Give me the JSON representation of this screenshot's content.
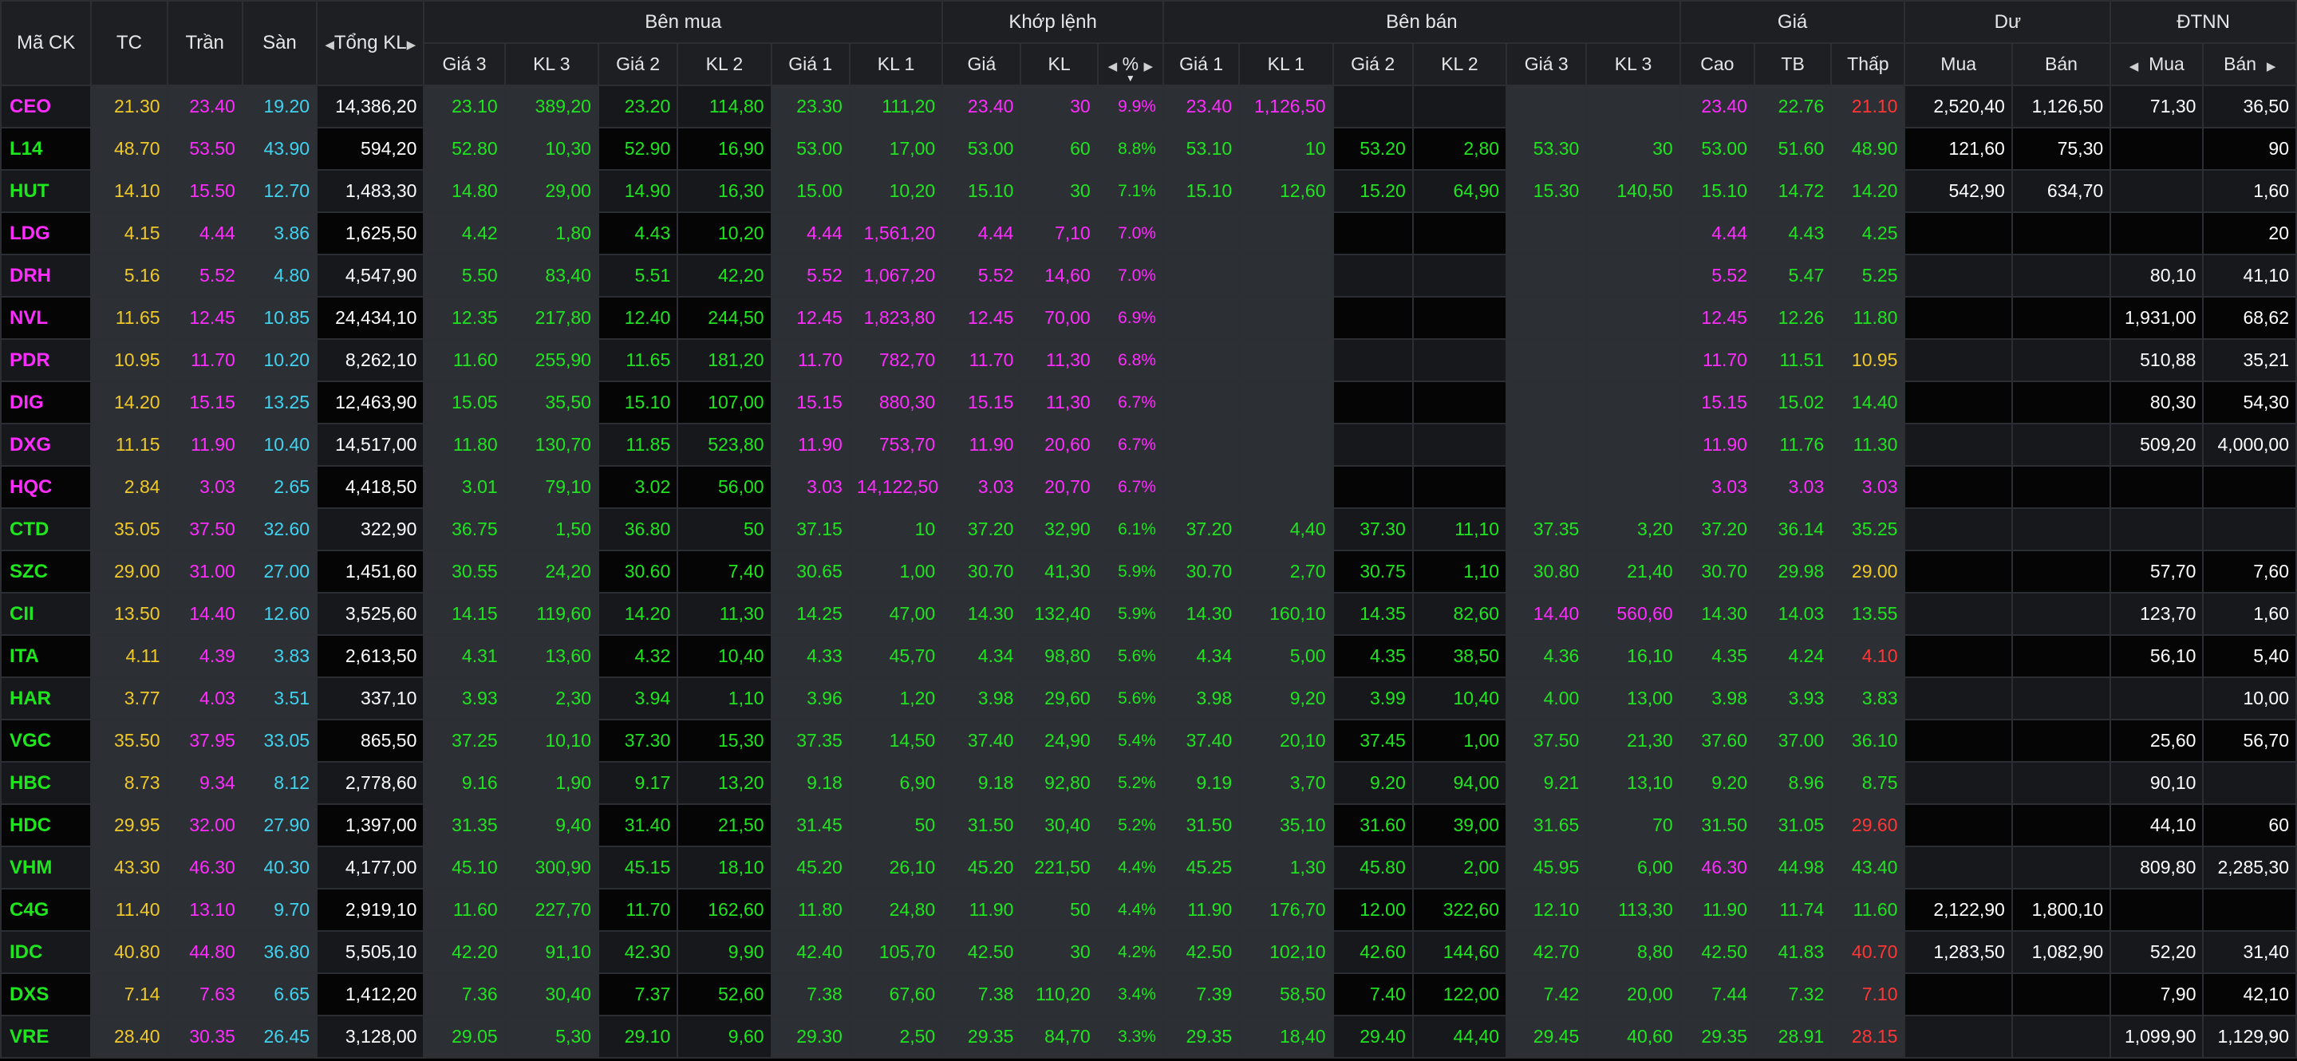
{
  "header": {
    "symbol": "Mã CK",
    "ref": "TC",
    "ceiling": "Trần",
    "floor": "Sàn",
    "total_volume": "Tổng KL",
    "buy_group": "Bên mua",
    "match_group": "Khớp lệnh",
    "sell_group": "Bên bán",
    "price_group": "Giá",
    "remain_group": "Dư",
    "foreign_group": "ĐTNN",
    "price3": "Giá 3",
    "vol3": "KL 3",
    "price2": "Giá 2",
    "vol2": "KL 2",
    "price1": "Giá 1",
    "vol1": "KL 1",
    "match_price": "Giá",
    "match_vol": "KL",
    "match_pct": "%",
    "high": "Cao",
    "avg": "TB",
    "low": "Thấp",
    "remain_buy": "Mua",
    "remain_sell": "Bán",
    "foreign_buy": "Mua",
    "foreign_sell": "Bán"
  },
  "colors": {
    "ceiling": "#ff2cff",
    "reference": "#f0c928",
    "floor": "#3fd3f0",
    "up": "#1fe51f",
    "down": "#ff3636",
    "neutral": "#ffffff",
    "header_bg": "#1d1f23",
    "highlight_bg": "#2c2f34"
  },
  "rows": [
    {
      "sym": "CEO",
      "tc": "21.30",
      "tran": "23.40",
      "san": "19.20",
      "tkl": "14,386,20",
      "bg3": "23.10",
      "bk3": "389,20",
      "bg2": "23.20",
      "bk2": "114,80",
      "bg1": "23.30",
      "bk1": "111,20",
      "mg": "23.40",
      "mk": "30",
      "mp": "9.9%",
      "sg1": "23.40",
      "sk1": "1,126,50",
      "sg2": "",
      "sk2": "",
      "sg3": "",
      "sk3": "",
      "cao": "23.40",
      "tb": "22.76",
      "thap": "21.10",
      "dm": "2,520,40",
      "db": "1,126,50",
      "fm": "71,30",
      "fb": "36,50",
      "c": {
        "sym": "ceil",
        "bg3": "up",
        "bg2": "up",
        "bg1": "up",
        "m": "ceil",
        "sg1": "ceil",
        "cao": "ceil",
        "tb": "up",
        "thap": "down"
      }
    },
    {
      "sym": "L14",
      "tc": "48.70",
      "tran": "53.50",
      "san": "43.90",
      "tkl": "594,20",
      "bg3": "52.80",
      "bk3": "10,30",
      "bg2": "52.90",
      "bk2": "16,90",
      "bg1": "53.00",
      "bk1": "17,00",
      "mg": "53.00",
      "mk": "60",
      "mp": "8.8%",
      "sg1": "53.10",
      "sk1": "10",
      "sg2": "53.20",
      "sk2": "2,80",
      "sg3": "53.30",
      "sk3": "30",
      "cao": "53.00",
      "tb": "51.60",
      "thap": "48.90",
      "dm": "121,60",
      "db": "75,30",
      "fm": "",
      "fb": "90",
      "c": {
        "sym": "up",
        "bg3": "up",
        "bg2": "up",
        "bg1": "up",
        "m": "up",
        "sg1": "up",
        "sg2": "up",
        "sg3": "up",
        "cao": "up",
        "tb": "up",
        "thap": "up"
      }
    },
    {
      "sym": "HUT",
      "tc": "14.10",
      "tran": "15.50",
      "san": "12.70",
      "tkl": "1,483,30",
      "bg3": "14.80",
      "bk3": "29,00",
      "bg2": "14.90",
      "bk2": "16,30",
      "bg1": "15.00",
      "bk1": "10,20",
      "mg": "15.10",
      "mk": "30",
      "mp": "7.1%",
      "sg1": "15.10",
      "sk1": "12,60",
      "sg2": "15.20",
      "sk2": "64,90",
      "sg3": "15.30",
      "sk3": "140,50",
      "cao": "15.10",
      "tb": "14.72",
      "thap": "14.20",
      "dm": "542,90",
      "db": "634,70",
      "fm": "",
      "fb": "1,60",
      "c": {
        "sym": "up",
        "bg3": "up",
        "bg2": "up",
        "bg1": "up",
        "m": "up",
        "sg1": "up",
        "sg2": "up",
        "sg3": "up",
        "cao": "up",
        "tb": "up",
        "thap": "up"
      }
    },
    {
      "sym": "LDG",
      "tc": "4.15",
      "tran": "4.44",
      "san": "3.86",
      "tkl": "1,625,50",
      "bg3": "4.42",
      "bk3": "1,80",
      "bg2": "4.43",
      "bk2": "10,20",
      "bg1": "4.44",
      "bk1": "1,561,20",
      "mg": "4.44",
      "mk": "7,10",
      "mp": "7.0%",
      "sg1": "",
      "sk1": "",
      "sg2": "",
      "sk2": "",
      "sg3": "",
      "sk3": "",
      "cao": "4.44",
      "tb": "4.43",
      "thap": "4.25",
      "dm": "",
      "db": "",
      "fm": "",
      "fb": "20",
      "c": {
        "sym": "ceil",
        "bg3": "up",
        "bg2": "up",
        "bg1": "ceil",
        "m": "ceil",
        "cao": "ceil",
        "tb": "up",
        "thap": "up"
      }
    },
    {
      "sym": "DRH",
      "tc": "5.16",
      "tran": "5.52",
      "san": "4.80",
      "tkl": "4,547,90",
      "bg3": "5.50",
      "bk3": "83,40",
      "bg2": "5.51",
      "bk2": "42,20",
      "bg1": "5.52",
      "bk1": "1,067,20",
      "mg": "5.52",
      "mk": "14,60",
      "mp": "7.0%",
      "sg1": "",
      "sk1": "",
      "sg2": "",
      "sk2": "",
      "sg3": "",
      "sk3": "",
      "cao": "5.52",
      "tb": "5.47",
      "thap": "5.25",
      "dm": "",
      "db": "",
      "fm": "80,10",
      "fb": "41,10",
      "c": {
        "sym": "ceil",
        "bg3": "up",
        "bg2": "up",
        "bg1": "ceil",
        "m": "ceil",
        "cao": "ceil",
        "tb": "up",
        "thap": "up"
      }
    },
    {
      "sym": "NVL",
      "tc": "11.65",
      "tran": "12.45",
      "san": "10.85",
      "tkl": "24,434,10",
      "bg3": "12.35",
      "bk3": "217,80",
      "bg2": "12.40",
      "bk2": "244,50",
      "bg1": "12.45",
      "bk1": "1,823,80",
      "mg": "12.45",
      "mk": "70,00",
      "mp": "6.9%",
      "sg1": "",
      "sk1": "",
      "sg2": "",
      "sk2": "",
      "sg3": "",
      "sk3": "",
      "cao": "12.45",
      "tb": "12.26",
      "thap": "11.80",
      "dm": "",
      "db": "",
      "fm": "1,931,00",
      "fb": "68,62",
      "c": {
        "sym": "ceil",
        "bg3": "up",
        "bg2": "up",
        "bg1": "ceil",
        "m": "ceil",
        "cao": "ceil",
        "tb": "up",
        "thap": "up"
      }
    },
    {
      "sym": "PDR",
      "tc": "10.95",
      "tran": "11.70",
      "san": "10.20",
      "tkl": "8,262,10",
      "bg3": "11.60",
      "bk3": "255,90",
      "bg2": "11.65",
      "bk2": "181,20",
      "bg1": "11.70",
      "bk1": "782,70",
      "mg": "11.70",
      "mk": "11,30",
      "mp": "6.8%",
      "sg1": "",
      "sk1": "",
      "sg2": "",
      "sk2": "",
      "sg3": "",
      "sk3": "",
      "cao": "11.70",
      "tb": "11.51",
      "thap": "10.95",
      "dm": "",
      "db": "",
      "fm": "510,88",
      "fb": "35,21",
      "c": {
        "sym": "ceil",
        "bg3": "up",
        "bg2": "up",
        "bg1": "ceil",
        "m": "ceil",
        "cao": "ceil",
        "tb": "up",
        "thap": "ref"
      }
    },
    {
      "sym": "DIG",
      "tc": "14.20",
      "tran": "15.15",
      "san": "13.25",
      "tkl": "12,463,90",
      "bg3": "15.05",
      "bk3": "35,50",
      "bg2": "15.10",
      "bk2": "107,00",
      "bg1": "15.15",
      "bk1": "880,30",
      "mg": "15.15",
      "mk": "11,30",
      "mp": "6.7%",
      "sg1": "",
      "sk1": "",
      "sg2": "",
      "sk2": "",
      "sg3": "",
      "sk3": "",
      "cao": "15.15",
      "tb": "15.02",
      "thap": "14.40",
      "dm": "",
      "db": "",
      "fm": "80,30",
      "fb": "54,30",
      "c": {
        "sym": "ceil",
        "bg3": "up",
        "bg2": "up",
        "bg1": "ceil",
        "m": "ceil",
        "cao": "ceil",
        "tb": "up",
        "thap": "up"
      }
    },
    {
      "sym": "DXG",
      "tc": "11.15",
      "tran": "11.90",
      "san": "10.40",
      "tkl": "14,517,00",
      "bg3": "11.80",
      "bk3": "130,70",
      "bg2": "11.85",
      "bk2": "523,80",
      "bg1": "11.90",
      "bk1": "753,70",
      "mg": "11.90",
      "mk": "20,60",
      "mp": "6.7%",
      "sg1": "",
      "sk1": "",
      "sg2": "",
      "sk2": "",
      "sg3": "",
      "sk3": "",
      "cao": "11.90",
      "tb": "11.76",
      "thap": "11.30",
      "dm": "",
      "db": "",
      "fm": "509,20",
      "fb": "4,000,00",
      "c": {
        "sym": "ceil",
        "bg3": "up",
        "bg2": "up",
        "bg1": "ceil",
        "m": "ceil",
        "cao": "ceil",
        "tb": "up",
        "thap": "up"
      }
    },
    {
      "sym": "HQC",
      "tc": "2.84",
      "tran": "3.03",
      "san": "2.65",
      "tkl": "4,418,50",
      "bg3": "3.01",
      "bk3": "79,10",
      "bg2": "3.02",
      "bk2": "56,00",
      "bg1": "3.03",
      "bk1": "14,122,50",
      "mg": "3.03",
      "mk": "20,70",
      "mp": "6.7%",
      "sg1": "",
      "sk1": "",
      "sg2": "",
      "sk2": "",
      "sg3": "",
      "sk3": "",
      "cao": "3.03",
      "tb": "3.03",
      "thap": "3.03",
      "dm": "",
      "db": "",
      "fm": "",
      "fb": "",
      "c": {
        "sym": "ceil",
        "bg3": "up",
        "bg2": "up",
        "bg1": "ceil",
        "m": "ceil",
        "cao": "ceil",
        "tb": "ceil",
        "thap": "ceil"
      }
    },
    {
      "sym": "CTD",
      "tc": "35.05",
      "tran": "37.50",
      "san": "32.60",
      "tkl": "322,90",
      "bg3": "36.75",
      "bk3": "1,50",
      "bg2": "36.80",
      "bk2": "50",
      "bg1": "37.15",
      "bk1": "10",
      "mg": "37.20",
      "mk": "32,90",
      "mp": "6.1%",
      "sg1": "37.20",
      "sk1": "4,40",
      "sg2": "37.30",
      "sk2": "11,10",
      "sg3": "37.35",
      "sk3": "3,20",
      "cao": "37.20",
      "tb": "36.14",
      "thap": "35.25",
      "dm": "",
      "db": "",
      "fm": "",
      "fb": "",
      "c": {
        "sym": "up",
        "bg3": "up",
        "bg2": "up",
        "bg1": "up",
        "m": "up",
        "sg1": "up",
        "sg2": "up",
        "sg3": "up",
        "cao": "up",
        "tb": "up",
        "thap": "up"
      }
    },
    {
      "sym": "SZC",
      "tc": "29.00",
      "tran": "31.00",
      "san": "27.00",
      "tkl": "1,451,60",
      "bg3": "30.55",
      "bk3": "24,20",
      "bg2": "30.60",
      "bk2": "7,40",
      "bg1": "30.65",
      "bk1": "1,00",
      "mg": "30.70",
      "mk": "41,30",
      "mp": "5.9%",
      "sg1": "30.70",
      "sk1": "2,70",
      "sg2": "30.75",
      "sk2": "1,10",
      "sg3": "30.80",
      "sk3": "21,40",
      "cao": "30.70",
      "tb": "29.98",
      "thap": "29.00",
      "dm": "",
      "db": "",
      "fm": "57,70",
      "fb": "7,60",
      "c": {
        "sym": "up",
        "bg3": "up",
        "bg2": "up",
        "bg1": "up",
        "m": "up",
        "sg1": "up",
        "sg2": "up",
        "sg3": "up",
        "cao": "up",
        "tb": "up",
        "thap": "ref"
      }
    },
    {
      "sym": "CII",
      "tc": "13.50",
      "tran": "14.40",
      "san": "12.60",
      "tkl": "3,525,60",
      "bg3": "14.15",
      "bk3": "119,60",
      "bg2": "14.20",
      "bk2": "11,30",
      "bg1": "14.25",
      "bk1": "47,00",
      "mg": "14.30",
      "mk": "132,40",
      "mp": "5.9%",
      "sg1": "14.30",
      "sk1": "160,10",
      "sg2": "14.35",
      "sk2": "82,60",
      "sg3": "14.40",
      "sk3": "560,60",
      "cao": "14.30",
      "tb": "14.03",
      "thap": "13.55",
      "dm": "",
      "db": "",
      "fm": "123,70",
      "fb": "1,60",
      "c": {
        "sym": "up",
        "bg3": "up",
        "bg2": "up",
        "bg1": "up",
        "m": "up",
        "sg1": "up",
        "sg2": "up",
        "sg3": "ceil",
        "cao": "up",
        "tb": "up",
        "thap": "up"
      }
    },
    {
      "sym": "ITA",
      "tc": "4.11",
      "tran": "4.39",
      "san": "3.83",
      "tkl": "2,613,50",
      "bg3": "4.31",
      "bk3": "13,60",
      "bg2": "4.32",
      "bk2": "10,40",
      "bg1": "4.33",
      "bk1": "45,70",
      "mg": "4.34",
      "mk": "98,80",
      "mp": "5.6%",
      "sg1": "4.34",
      "sk1": "5,00",
      "sg2": "4.35",
      "sk2": "38,50",
      "sg3": "4.36",
      "sk3": "16,10",
      "cao": "4.35",
      "tb": "4.24",
      "thap": "4.10",
      "dm": "",
      "db": "",
      "fm": "56,10",
      "fb": "5,40",
      "c": {
        "sym": "up",
        "bg3": "up",
        "bg2": "up",
        "bg1": "up",
        "m": "up",
        "sg1": "up",
        "sg2": "up",
        "sg3": "up",
        "cao": "up",
        "tb": "up",
        "thap": "down"
      }
    },
    {
      "sym": "HAR",
      "tc": "3.77",
      "tran": "4.03",
      "san": "3.51",
      "tkl": "337,10",
      "bg3": "3.93",
      "bk3": "2,30",
      "bg2": "3.94",
      "bk2": "1,10",
      "bg1": "3.96",
      "bk1": "1,20",
      "mg": "3.98",
      "mk": "29,60",
      "mp": "5.6%",
      "sg1": "3.98",
      "sk1": "9,20",
      "sg2": "3.99",
      "sk2": "10,40",
      "sg3": "4.00",
      "sk3": "13,00",
      "cao": "3.98",
      "tb": "3.93",
      "thap": "3.83",
      "dm": "",
      "db": "",
      "fm": "",
      "fb": "10,00",
      "c": {
        "sym": "up",
        "bg3": "up",
        "bg2": "up",
        "bg1": "up",
        "m": "up",
        "sg1": "up",
        "sg2": "up",
        "sg3": "up",
        "cao": "up",
        "tb": "up",
        "thap": "up"
      }
    },
    {
      "sym": "VGC",
      "tc": "35.50",
      "tran": "37.95",
      "san": "33.05",
      "tkl": "865,50",
      "bg3": "37.25",
      "bk3": "10,10",
      "bg2": "37.30",
      "bk2": "15,30",
      "bg1": "37.35",
      "bk1": "14,50",
      "mg": "37.40",
      "mk": "24,90",
      "mp": "5.4%",
      "sg1": "37.40",
      "sk1": "20,10",
      "sg2": "37.45",
      "sk2": "1,00",
      "sg3": "37.50",
      "sk3": "21,30",
      "cao": "37.60",
      "tb": "37.00",
      "thap": "36.10",
      "dm": "",
      "db": "",
      "fm": "25,60",
      "fb": "56,70",
      "c": {
        "sym": "up",
        "bg3": "up",
        "bg2": "up",
        "bg1": "up",
        "m": "up",
        "sg1": "up",
        "sg2": "up",
        "sg3": "up",
        "cao": "up",
        "tb": "up",
        "thap": "up"
      }
    },
    {
      "sym": "HBC",
      "tc": "8.73",
      "tran": "9.34",
      "san": "8.12",
      "tkl": "2,778,60",
      "bg3": "9.16",
      "bk3": "1,90",
      "bg2": "9.17",
      "bk2": "13,20",
      "bg1": "9.18",
      "bk1": "6,90",
      "mg": "9.18",
      "mk": "92,80",
      "mp": "5.2%",
      "sg1": "9.19",
      "sk1": "3,70",
      "sg2": "9.20",
      "sk2": "94,00",
      "sg3": "9.21",
      "sk3": "13,10",
      "cao": "9.20",
      "tb": "8.96",
      "thap": "8.75",
      "dm": "",
      "db": "",
      "fm": "90,10",
      "fb": "",
      "c": {
        "sym": "up",
        "bg3": "up",
        "bg2": "up",
        "bg1": "up",
        "m": "up",
        "sg1": "up",
        "sg2": "up",
        "sg3": "up",
        "cao": "up",
        "tb": "up",
        "thap": "up"
      }
    },
    {
      "sym": "HDC",
      "tc": "29.95",
      "tran": "32.00",
      "san": "27.90",
      "tkl": "1,397,00",
      "bg3": "31.35",
      "bk3": "9,40",
      "bg2": "31.40",
      "bk2": "21,50",
      "bg1": "31.45",
      "bk1": "50",
      "mg": "31.50",
      "mk": "30,40",
      "mp": "5.2%",
      "sg1": "31.50",
      "sk1": "35,10",
      "sg2": "31.60",
      "sk2": "39,00",
      "sg3": "31.65",
      "sk3": "70",
      "cao": "31.50",
      "tb": "31.05",
      "thap": "29.60",
      "dm": "",
      "db": "",
      "fm": "44,10",
      "fb": "60",
      "c": {
        "sym": "up",
        "bg3": "up",
        "bg2": "up",
        "bg1": "up",
        "m": "up",
        "sg1": "up",
        "sg2": "up",
        "sg3": "up",
        "cao": "up",
        "tb": "up",
        "thap": "down"
      }
    },
    {
      "sym": "VHM",
      "tc": "43.30",
      "tran": "46.30",
      "san": "40.30",
      "tkl": "4,177,00",
      "bg3": "45.10",
      "bk3": "300,90",
      "bg2": "45.15",
      "bk2": "18,10",
      "bg1": "45.20",
      "bk1": "26,10",
      "mg": "45.20",
      "mk": "221,50",
      "mp": "4.4%",
      "sg1": "45.25",
      "sk1": "1,30",
      "sg2": "45.80",
      "sk2": "2,00",
      "sg3": "45.95",
      "sk3": "6,00",
      "cao": "46.30",
      "tb": "44.98",
      "thap": "43.40",
      "dm": "",
      "db": "",
      "fm": "809,80",
      "fb": "2,285,30",
      "c": {
        "sym": "up",
        "bg3": "up",
        "bg2": "up",
        "bg1": "up",
        "m": "up",
        "sg1": "up",
        "sg2": "up",
        "sg3": "up",
        "cao": "ceil",
        "tb": "up",
        "thap": "up"
      }
    },
    {
      "sym": "C4G",
      "tc": "11.40",
      "tran": "13.10",
      "san": "9.70",
      "tkl": "2,919,10",
      "bg3": "11.60",
      "bk3": "227,70",
      "bg2": "11.70",
      "bk2": "162,60",
      "bg1": "11.80",
      "bk1": "24,80",
      "mg": "11.90",
      "mk": "50",
      "mp": "4.4%",
      "sg1": "11.90",
      "sk1": "176,70",
      "sg2": "12.00",
      "sk2": "322,60",
      "sg3": "12.10",
      "sk3": "113,30",
      "cao": "11.90",
      "tb": "11.74",
      "thap": "11.60",
      "dm": "2,122,90",
      "db": "1,800,10",
      "fm": "",
      "fb": "",
      "c": {
        "sym": "up",
        "bg3": "up",
        "bg2": "up",
        "bg1": "up",
        "m": "up",
        "sg1": "up",
        "sg2": "up",
        "sg3": "up",
        "cao": "up",
        "tb": "up",
        "thap": "up"
      }
    },
    {
      "sym": "IDC",
      "tc": "40.80",
      "tran": "44.80",
      "san": "36.80",
      "tkl": "5,505,10",
      "bg3": "42.20",
      "bk3": "91,10",
      "bg2": "42.30",
      "bk2": "9,90",
      "bg1": "42.40",
      "bk1": "105,70",
      "mg": "42.50",
      "mk": "30",
      "mp": "4.2%",
      "sg1": "42.50",
      "sk1": "102,10",
      "sg2": "42.60",
      "sk2": "144,60",
      "sg3": "42.70",
      "sk3": "8,80",
      "cao": "42.50",
      "tb": "41.83",
      "thap": "40.70",
      "dm": "1,283,50",
      "db": "1,082,90",
      "fm": "52,20",
      "fb": "31,40",
      "c": {
        "sym": "up",
        "bg3": "up",
        "bg2": "up",
        "bg1": "up",
        "m": "up",
        "sg1": "up",
        "sg2": "up",
        "sg3": "up",
        "cao": "up",
        "tb": "up",
        "thap": "down"
      }
    },
    {
      "sym": "DXS",
      "tc": "7.14",
      "tran": "7.63",
      "san": "6.65",
      "tkl": "1,412,20",
      "bg3": "7.36",
      "bk3": "30,40",
      "bg2": "7.37",
      "bk2": "52,60",
      "bg1": "7.38",
      "bk1": "67,60",
      "mg": "7.38",
      "mk": "110,20",
      "mp": "3.4%",
      "sg1": "7.39",
      "sk1": "58,50",
      "sg2": "7.40",
      "sk2": "122,00",
      "sg3": "7.42",
      "sk3": "20,00",
      "cao": "7.44",
      "tb": "7.32",
      "thap": "7.10",
      "dm": "",
      "db": "",
      "fm": "7,90",
      "fb": "42,10",
      "c": {
        "sym": "up",
        "bg3": "up",
        "bg2": "up",
        "bg1": "up",
        "m": "up",
        "sg1": "up",
        "sg2": "up",
        "sg3": "up",
        "cao": "up",
        "tb": "up",
        "thap": "down"
      }
    },
    {
      "sym": "VRE",
      "tc": "28.40",
      "tran": "30.35",
      "san": "26.45",
      "tkl": "3,128,00",
      "bg3": "29.05",
      "bk3": "5,30",
      "bg2": "29.10",
      "bk2": "9,60",
      "bg1": "29.30",
      "bk1": "2,50",
      "mg": "29.35",
      "mk": "84,70",
      "mp": "3.3%",
      "sg1": "29.35",
      "sk1": "18,40",
      "sg2": "29.40",
      "sk2": "44,40",
      "sg3": "29.45",
      "sk3": "40,60",
      "cao": "29.35",
      "tb": "28.91",
      "thap": "28.15",
      "dm": "",
      "db": "",
      "fm": "1,099,90",
      "fb": "1,129,90",
      "c": {
        "sym": "up",
        "bg3": "up",
        "bg2": "up",
        "bg1": "up",
        "m": "up",
        "sg1": "up",
        "sg2": "up",
        "sg3": "up",
        "cao": "up",
        "tb": "up",
        "thap": "down"
      }
    }
  ]
}
